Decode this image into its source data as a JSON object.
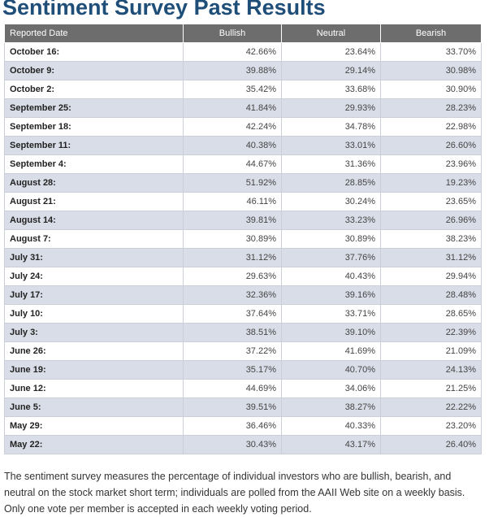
{
  "page": {
    "title": "Sentiment Survey Past Results",
    "description": "The sentiment survey measures the percentage of individual investors who are bullish, bearish, and neutral on the stock market short term; individuals are polled from the AAII Web site on a weekly basis. Only one vote per member is accepted in each weekly voting period."
  },
  "table": {
    "headers": [
      "Reported Date",
      "Bullish",
      "Neutral",
      "Bearish"
    ],
    "rows": [
      [
        "October 16:",
        "42.66%",
        "23.64%",
        "33.70%"
      ],
      [
        "October 9:",
        "39.88%",
        "29.14%",
        "30.98%"
      ],
      [
        "October 2:",
        "35.42%",
        "33.68%",
        "30.90%"
      ],
      [
        "September 25:",
        "41.84%",
        "29.93%",
        "28.23%"
      ],
      [
        "September 18:",
        "42.24%",
        "34.78%",
        "22.98%"
      ],
      [
        "September 11:",
        "40.38%",
        "33.01%",
        "26.60%"
      ],
      [
        "September 4:",
        "44.67%",
        "31.36%",
        "23.96%"
      ],
      [
        "August 28:",
        "51.92%",
        "28.85%",
        "19.23%"
      ],
      [
        "August 21:",
        "46.11%",
        "30.24%",
        "23.65%"
      ],
      [
        "August 14:",
        "39.81%",
        "33.23%",
        "26.96%"
      ],
      [
        "August 7:",
        "30.89%",
        "30.89%",
        "38.23%"
      ],
      [
        "July 31:",
        "31.12%",
        "37.76%",
        "31.12%"
      ],
      [
        "July 24:",
        "29.63%",
        "40.43%",
        "29.94%"
      ],
      [
        "July 17:",
        "32.36%",
        "39.16%",
        "28.48%"
      ],
      [
        "July 10:",
        "37.64%",
        "33.71%",
        "28.65%"
      ],
      [
        "July 3:",
        "38.51%",
        "39.10%",
        "22.39%"
      ],
      [
        "June 26:",
        "37.22%",
        "41.69%",
        "21.09%"
      ],
      [
        "June 19:",
        "35.17%",
        "40.70%",
        "24.13%"
      ],
      [
        "June 12:",
        "44.69%",
        "34.06%",
        "21.25%"
      ],
      [
        "June 5:",
        "39.51%",
        "38.27%",
        "22.22%"
      ],
      [
        "May 29:",
        "36.46%",
        "40.33%",
        "23.20%"
      ],
      [
        "May 22:",
        "30.43%",
        "43.17%",
        "26.40%"
      ]
    ]
  },
  "colors": {
    "title": "#1f4e79",
    "header_bg": "#6d6d6d",
    "row_alt_bg": "#d9dde7"
  }
}
